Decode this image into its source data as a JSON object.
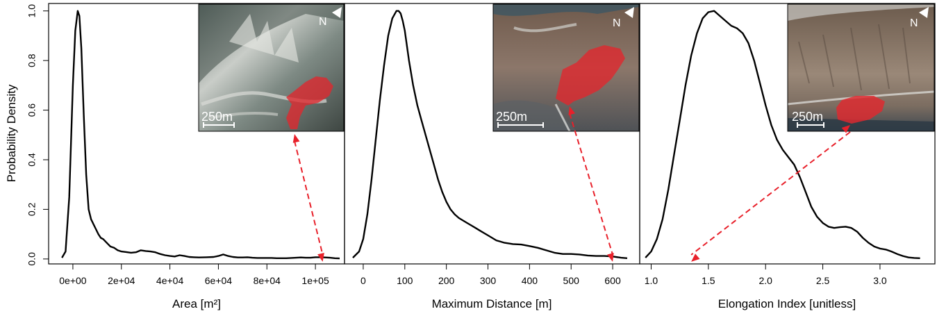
{
  "ylabel": "Probability Density",
  "y_ticks": [
    "0.0",
    "0.2",
    "0.4",
    "0.6",
    "0.8",
    "1.0"
  ],
  "colors": {
    "curve": "#000000",
    "arrow": "#e8202a",
    "mask": "#e0282e",
    "frame": "#000000"
  },
  "inset_text": {
    "north": "N",
    "scale": "250m"
  },
  "chart_data": [
    {
      "type": "line",
      "title": "",
      "xlabel": "Area [m²]",
      "ylabel": "Probability Density",
      "xlim": [
        -10000,
        112000
      ],
      "ylim": [
        -0.02,
        1.03
      ],
      "x_ticks": [
        {
          "v": 0,
          "label": "0e+00"
        },
        {
          "v": 20000,
          "label": "2e+04"
        },
        {
          "v": 40000,
          "label": "4e+04"
        },
        {
          "v": 60000,
          "label": "6e+04"
        },
        {
          "v": 80000,
          "label": "8e+04"
        },
        {
          "v": 100000,
          "label": "1e+05"
        }
      ],
      "x": [
        -4500,
        -3000,
        -1500,
        0,
        1000,
        2000,
        2700,
        3500,
        4500,
        5500,
        6500,
        7500,
        8500,
        9500,
        10500,
        11500,
        12500,
        13500,
        14500,
        15500,
        17000,
        18500,
        20000,
        22000,
        24000,
        26000,
        28000,
        30000,
        32000,
        34000,
        36000,
        38000,
        40000,
        42000,
        44000,
        46000,
        48000,
        50000,
        52000,
        55000,
        58000,
        60000,
        62000,
        64000,
        66000,
        68000,
        70000,
        72000,
        74000,
        76000,
        78000,
        80000,
        82000,
        84000,
        86000,
        88000,
        90000,
        92000,
        94000,
        96000,
        98000,
        100000,
        102000,
        104000,
        106000,
        108000,
        110000
      ],
      "y": [
        0.005,
        0.03,
        0.25,
        0.7,
        0.92,
        1.0,
        0.98,
        0.85,
        0.58,
        0.34,
        0.2,
        0.16,
        0.14,
        0.12,
        0.1,
        0.085,
        0.08,
        0.07,
        0.06,
        0.05,
        0.045,
        0.035,
        0.03,
        0.028,
        0.025,
        0.027,
        0.035,
        0.032,
        0.03,
        0.027,
        0.02,
        0.015,
        0.012,
        0.01,
        0.015,
        0.012,
        0.008,
        0.007,
        0.006,
        0.007,
        0.008,
        0.012,
        0.018,
        0.012,
        0.008,
        0.006,
        0.006,
        0.007,
        0.005,
        0.004,
        0.004,
        0.004,
        0.004,
        0.003,
        0.003,
        0.003,
        0.004,
        0.005,
        0.006,
        0.005,
        0.005,
        0.007,
        0.007,
        0.006,
        0.005,
        0.003,
        0.002
      ],
      "inset_marker": {
        "x": 103000,
        "y": 0.0
      }
    },
    {
      "type": "line",
      "title": "",
      "xlabel": "Maximum Distance [m]",
      "ylabel": "Probability Density",
      "xlim": [
        -45,
        665
      ],
      "ylim": [
        -0.02,
        1.03
      ],
      "x_ticks": [
        {
          "v": 0,
          "label": "0"
        },
        {
          "v": 100,
          "label": "100"
        },
        {
          "v": 200,
          "label": "200"
        },
        {
          "v": 300,
          "label": "300"
        },
        {
          "v": 400,
          "label": "400"
        },
        {
          "v": 500,
          "label": "500"
        },
        {
          "v": 600,
          "label": "600"
        }
      ],
      "x": [
        -25,
        -10,
        0,
        10,
        20,
        30,
        40,
        50,
        60,
        70,
        80,
        85,
        90,
        95,
        100,
        110,
        120,
        130,
        140,
        150,
        160,
        170,
        180,
        190,
        200,
        210,
        220,
        230,
        240,
        250,
        260,
        270,
        280,
        290,
        300,
        320,
        340,
        360,
        380,
        400,
        420,
        440,
        460,
        480,
        500,
        520,
        540,
        560,
        580,
        600,
        620,
        635
      ],
      "y": [
        0.005,
        0.03,
        0.08,
        0.18,
        0.32,
        0.48,
        0.64,
        0.78,
        0.9,
        0.97,
        1.0,
        1.0,
        0.99,
        0.96,
        0.92,
        0.8,
        0.7,
        0.62,
        0.56,
        0.5,
        0.44,
        0.38,
        0.32,
        0.27,
        0.23,
        0.2,
        0.18,
        0.165,
        0.155,
        0.145,
        0.135,
        0.125,
        0.115,
        0.105,
        0.095,
        0.075,
        0.065,
        0.06,
        0.058,
        0.052,
        0.045,
        0.035,
        0.025,
        0.02,
        0.02,
        0.018,
        0.014,
        0.012,
        0.012,
        0.01,
        0.005,
        0.003
      ],
      "inset_marker": {
        "x": 600,
        "y": 0.0
      }
    },
    {
      "type": "line",
      "title": "",
      "xlabel": "Elongation Index [unitless]",
      "ylabel": "Probability Density",
      "xlim": [
        0.9,
        3.48
      ],
      "ylim": [
        -0.02,
        1.03
      ],
      "x_ticks": [
        {
          "v": 1.0,
          "label": "1.0"
        },
        {
          "v": 1.5,
          "label": "1.5"
        },
        {
          "v": 2.0,
          "label": "2.0"
        },
        {
          "v": 2.5,
          "label": "2.5"
        },
        {
          "v": 3.0,
          "label": "3.0"
        }
      ],
      "x": [
        0.95,
        1.0,
        1.05,
        1.1,
        1.15,
        1.2,
        1.25,
        1.3,
        1.35,
        1.4,
        1.45,
        1.5,
        1.55,
        1.6,
        1.65,
        1.7,
        1.75,
        1.8,
        1.85,
        1.9,
        1.95,
        2.0,
        2.05,
        2.1,
        2.15,
        2.2,
        2.25,
        2.3,
        2.35,
        2.4,
        2.45,
        2.5,
        2.55,
        2.6,
        2.65,
        2.7,
        2.75,
        2.8,
        2.85,
        2.9,
        2.95,
        3.0,
        3.05,
        3.1,
        3.15,
        3.2,
        3.25,
        3.3,
        3.35
      ],
      "y": [
        0.005,
        0.03,
        0.08,
        0.16,
        0.28,
        0.42,
        0.56,
        0.7,
        0.82,
        0.91,
        0.97,
        0.995,
        1.0,
        0.98,
        0.96,
        0.94,
        0.93,
        0.91,
        0.87,
        0.8,
        0.71,
        0.62,
        0.54,
        0.48,
        0.44,
        0.41,
        0.38,
        0.33,
        0.27,
        0.21,
        0.17,
        0.145,
        0.13,
        0.125,
        0.128,
        0.13,
        0.125,
        0.11,
        0.085,
        0.065,
        0.05,
        0.042,
        0.038,
        0.03,
        0.02,
        0.012,
        0.006,
        0.004,
        0.003
      ],
      "inset_marker": {
        "x": 1.35,
        "y": 0.0
      }
    }
  ]
}
